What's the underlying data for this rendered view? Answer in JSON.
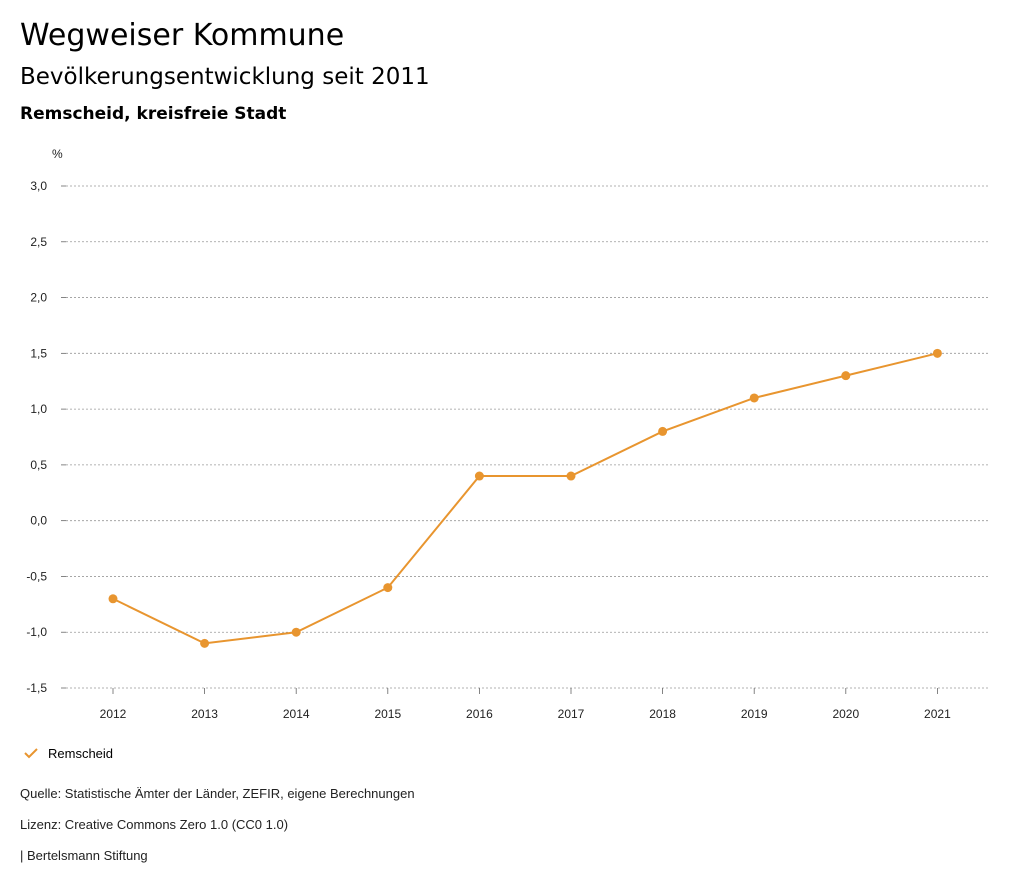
{
  "header": {
    "title": "Wegweiser Kommune",
    "subtitle": "Bevölkerungsentwicklung seit 2011",
    "region": "Remscheid, kreisfreie Stadt"
  },
  "chart_data": {
    "type": "line",
    "ylabel": "%",
    "x": [
      "2012",
      "2013",
      "2014",
      "2015",
      "2016",
      "2017",
      "2018",
      "2019",
      "2020",
      "2021"
    ],
    "yticks": [
      "3,0",
      "2,5",
      "2,0",
      "1,5",
      "1,0",
      "0,5",
      "0,0",
      "-0,5",
      "-1,0",
      "-1,5"
    ],
    "ytick_values": [
      3.0,
      2.5,
      2.0,
      1.5,
      1.0,
      0.5,
      0.0,
      -0.5,
      -1.0,
      -1.5
    ],
    "ylim": [
      -1.5,
      3.0
    ],
    "grid": true,
    "legend_position": "bottom-left",
    "series": [
      {
        "name": "Remscheid",
        "color": "#e8952f",
        "values": [
          -0.7,
          -1.1,
          -1.0,
          -0.6,
          0.4,
          0.4,
          0.8,
          1.1,
          1.3,
          1.5
        ]
      }
    ]
  },
  "legend": {
    "label": "Remscheid",
    "icon": "check-icon"
  },
  "footer": {
    "source": "Quelle: Statistische Ämter der Länder, ZEFIR, eigene Berechnungen",
    "license": "Lizenz: Creative Commons Zero 1.0 (CC0 1.0)",
    "publisher": "| Bertelsmann Stiftung"
  }
}
